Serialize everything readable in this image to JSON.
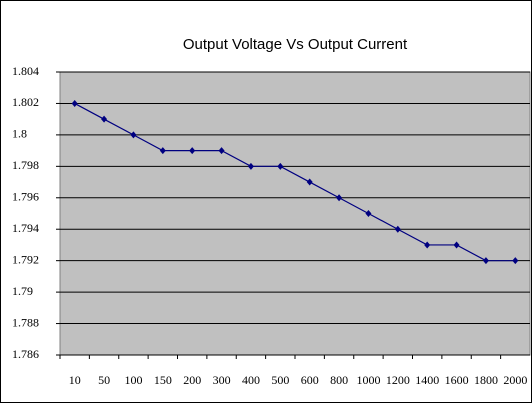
{
  "chart_data": {
    "type": "line",
    "title": "Output Voltage Vs Output Current",
    "categories": [
      "10",
      "50",
      "100",
      "150",
      "200",
      "300",
      "400",
      "500",
      "600",
      "800",
      "1000",
      "1200",
      "1400",
      "1600",
      "1800",
      "2000"
    ],
    "series": [
      {
        "color": "#000080",
        "values": [
          1.802,
          1.801,
          1.8,
          1.799,
          1.799,
          1.799,
          1.798,
          1.798,
          1.797,
          1.796,
          1.795,
          1.794,
          1.793,
          1.793,
          1.792,
          1.792
        ]
      }
    ],
    "ylim": [
      1.786,
      1.804
    ],
    "yticks": [
      1.786,
      1.788,
      1.79,
      1.792,
      1.794,
      1.796,
      1.798,
      1.8,
      1.802,
      1.804
    ],
    "grid": true
  }
}
